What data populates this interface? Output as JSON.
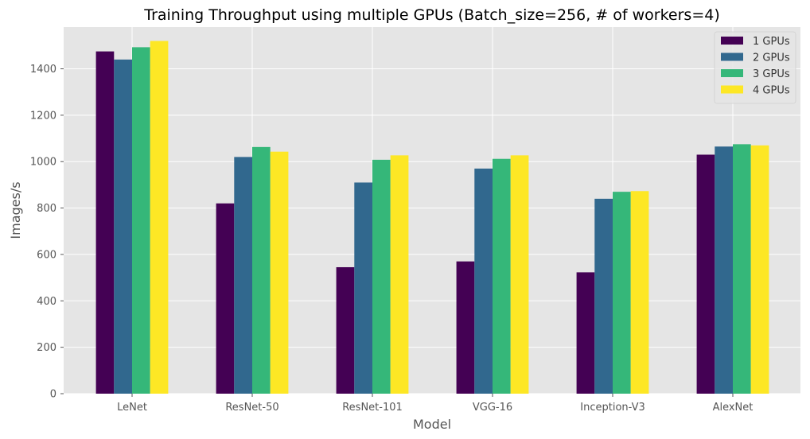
{
  "chart_data": {
    "type": "bar",
    "title": "Training Throughput using multiple GPUs (Batch_size=256, # of workers=4)",
    "xlabel": "Model",
    "ylabel": "Images/s",
    "categories": [
      "LeNet",
      "ResNet-50",
      "ResNet-101",
      "VGG-16",
      "Inception-V3",
      "AlexNet"
    ],
    "series": [
      {
        "name": "1 GPUs",
        "color": "#440154",
        "values": [
          1475,
          820,
          545,
          570,
          523,
          1030
        ]
      },
      {
        "name": "2 GPUs",
        "color": "#31688e",
        "values": [
          1440,
          1020,
          910,
          970,
          840,
          1065
        ]
      },
      {
        "name": "3 GPUs",
        "color": "#35b779",
        "values": [
          1493,
          1063,
          1008,
          1012,
          870,
          1075
        ]
      },
      {
        "name": "4 GPUs",
        "color": "#fde725",
        "values": [
          1520,
          1043,
          1027,
          1027,
          873,
          1070
        ]
      }
    ],
    "ylim": [
      0,
      1580
    ],
    "yticks": [
      0,
      200,
      400,
      600,
      800,
      1000,
      1200,
      1400
    ],
    "grid": true,
    "legend_position": "top-right",
    "style": {
      "background": "#e5e5e5",
      "grid_color": "#ffffff"
    }
  }
}
